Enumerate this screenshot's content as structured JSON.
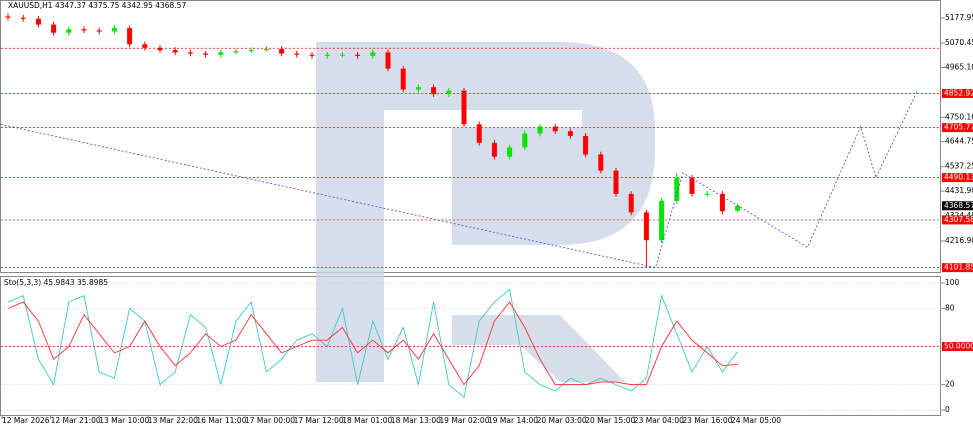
{
  "chart_data": [
    {
      "type": "candlestick",
      "title": "XAUUSD,H1",
      "open": [
        5185,
        5180,
        5175,
        5150,
        5115,
        5130,
        5125,
        5120,
        5135,
        5065,
        5050,
        5040,
        5030,
        5025,
        5020,
        5030,
        5035,
        5040,
        5045,
        5025,
        5020,
        5015,
        5020,
        5020,
        5015,
        5030,
        4960,
        4870,
        4880,
        4850,
        4865,
        4720,
        4640,
        4580,
        4620,
        4680,
        4710,
        4690,
        4670,
        4590,
        4520,
        4420,
        4340,
        4220,
        4390,
        4490,
        4420,
        4420,
        4347.37
      ],
      "high": [
        5197,
        5192,
        5187,
        5162,
        5142,
        5142,
        5137,
        5147,
        5147,
        5077,
        5062,
        5052,
        5042,
        5037,
        5042,
        5047,
        5052,
        5057,
        5057,
        5037,
        5032,
        5032,
        5032,
        5032,
        5042,
        5042,
        4972,
        4892,
        4892,
        4877,
        4877,
        4732,
        4652,
        4632,
        4692,
        4722,
        4722,
        4702,
        4682,
        4602,
        4532,
        4432,
        4352,
        4402,
        4510,
        4502,
        4432,
        4432,
        4375.75
      ],
      "low": [
        5168,
        5163,
        5138,
        5103,
        5103,
        5113,
        5108,
        5108,
        5053,
        5038,
        5028,
        5018,
        5013,
        5008,
        5008,
        5023,
        5028,
        5033,
        5013,
        5008,
        5003,
        5003,
        5008,
        5003,
        5003,
        4948,
        4858,
        4858,
        4838,
        4838,
        4708,
        4628,
        4568,
        4568,
        4608,
        4668,
        4678,
        4658,
        4578,
        4508,
        4408,
        4328,
        4101.85,
        4208,
        4378,
        4408,
        4408,
        4333,
        4342.95
      ],
      "close": [
        5180,
        5175,
        5150,
        5115,
        5130,
        5125,
        5120,
        5135,
        5065,
        5050,
        5040,
        5030,
        5025,
        5020,
        5030,
        5035,
        5040,
        5045,
        5025,
        5020,
        5015,
        5020,
        5020,
        5015,
        5030,
        4960,
        4870,
        4880,
        4850,
        4865,
        4720,
        4640,
        4580,
        4620,
        4680,
        4710,
        4690,
        4670,
        4590,
        4520,
        4420,
        4340,
        4220,
        4390,
        4490,
        4420,
        4420,
        4345,
        4368.57
      ],
      "up_color": "#00e600",
      "down_color": "#ff0000",
      "ylim": [
        4083,
        5256
      ],
      "yticks": [
        5177.95,
        5070.45,
        {
          "value": 4965.1,
          "label": "4965.10"
        },
        {
          "value": 4750.1,
          "label": "4750.10"
        },
        4644.75,
        4537.25,
        {
          "value": 4431.9,
          "label": "4431.90"
        },
        {
          "value": 4324.4,
          "label": "4324.40"
        },
        {
          "value": 4216.9,
          "label": "4216.90"
        }
      ],
      "levels": [
        4852.92,
        4705.77,
        4490.13,
        4307.58,
        4101.85
      ],
      "unlabeled_levels": [
        5048
      ],
      "level_color": "#ff0000",
      "forecast": {
        "x": [
          -0.5,
          42.6,
          44.4,
          52.6,
          56.1,
          57.1,
          59.8
        ],
        "y": [
          4720,
          4101.85,
          4510,
          4190,
          4710,
          4490,
          4860
        ],
        "color": "#5555dd"
      }
    },
    {
      "type": "line",
      "title": "Sto(5,3,3)",
      "series": [
        {
          "color": "#40c8c8",
          "values": [
            85,
            90,
            40,
            20,
            85,
            90,
            30,
            25,
            80,
            70,
            20,
            30,
            75,
            65,
            20,
            70,
            85,
            30,
            40,
            55,
            60,
            50,
            80,
            20,
            70,
            40,
            65,
            20,
            85,
            20,
            10,
            70,
            85,
            95,
            30,
            20,
            15,
            25,
            20,
            25,
            20,
            15,
            25,
            90,
            60,
            30,
            50,
            30,
            45.9843
          ]
        },
        {
          "color": "#ff3030",
          "values": [
            80,
            85,
            70,
            40,
            50,
            75,
            60,
            45,
            50,
            70,
            50,
            35,
            45,
            60,
            50,
            55,
            75,
            60,
            45,
            50,
            55,
            55,
            65,
            45,
            55,
            45,
            55,
            40,
            60,
            40,
            20,
            35,
            70,
            85,
            65,
            40,
            20,
            20,
            20,
            22,
            22,
            20,
            20,
            50,
            70,
            55,
            45,
            35,
            35.8985
          ]
        }
      ],
      "ylim": [
        -3.9,
        104.7
      ],
      "yticks": [
        100,
        80,
        20,
        0
      ],
      "level": {
        "value": 50,
        "label": "50.0000"
      },
      "x_labels": [
        "12 Mar 2026",
        "12 Mar 21:00",
        "13 Mar 10:00",
        "13 Mar 22:00",
        "16 Mar 11:00",
        "17 Mar 00:00",
        "17 Mar 12:00",
        "18 Mar 01:00",
        "18 Mar 13:00",
        "19 Mar 02:00",
        "19 Mar 14:00",
        "20 Mar 03:00",
        "20 Mar 15:00",
        "23 Mar 04:00",
        "23 Mar 16:00",
        "24 Mar 05:00"
      ]
    }
  ]
}
